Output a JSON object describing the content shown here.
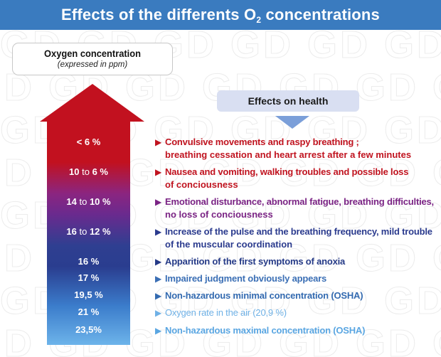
{
  "title": {
    "prefix": "Effects of the differents O",
    "subscript": "2",
    "suffix": " concentrations"
  },
  "colors": {
    "title_bar": "#3a7bbf",
    "arrow_top": "#c2111f",
    "arrow_mid": "#7a2a8e",
    "arrow_bottom_dark": "#2a3d8f",
    "arrow_bottom_light": "#6db4ea",
    "effects_box": "#d9dff2",
    "effects_pointer": "#7b9fd9"
  },
  "oxygen_box": {
    "title": "Oxygen concentration",
    "subtitle": "(expressed in ppm)"
  },
  "effects_box": {
    "label": "Effects on health"
  },
  "bullet": "▶",
  "levels": [
    {
      "a": "< 6 %",
      "to": "",
      "b": ""
    },
    {
      "a": "10",
      "to": " to ",
      "b": "6 %"
    },
    {
      "a": "14",
      "to": " to ",
      "b": "10 %"
    },
    {
      "a": "16",
      "to": " to ",
      "b": "12 %"
    },
    {
      "a": "16 %",
      "to": "",
      "b": ""
    },
    {
      "a": "17 %",
      "to": "",
      "b": ""
    },
    {
      "a": "19,5 %",
      "to": "",
      "b": ""
    },
    {
      "a": "21 %",
      "to": "",
      "b": ""
    },
    {
      "a": "23,5%",
      "to": "",
      "b": ""
    }
  ],
  "effects": [
    {
      "line1": "Convulsive movements and raspy breathing ;",
      "line2": "breathing cessation and heart arrest after a few minutes",
      "color": "#c0131f"
    },
    {
      "line1": "Nausea and vomiting, walking troubles and possible loss",
      "line2": " of conciousness",
      "color": "#c0131f"
    },
    {
      "line1": "Emotional disturbance, abnormal fatigue, breathing difficulties,",
      "line2": "no loss of conciousness",
      "color": "#7a2384"
    },
    {
      "line1": "Increase of the pulse and the breathing frequency, mild trouble",
      "line2": "of the muscular coordination",
      "color": "#2b3b8e"
    },
    {
      "line1": "Apparition of the first symptoms of anoxia",
      "line2": "",
      "color": "#253a87"
    },
    {
      "line1": "Impaired judgment obviously appears",
      "line2": "",
      "color": "#3b6fb5"
    },
    {
      "line1": "Non-hazardous minimal concentration (OSHA)",
      "line2": "",
      "color": "#336ab0"
    },
    {
      "line1": "Oxygen rate in the air (20,9 %)",
      "line2": "",
      "color": "#6fb1e6"
    },
    {
      "line1": "Non-hazardous maximal concentration (OSHA)",
      "line2": "",
      "color": "#5aa6e2"
    }
  ],
  "watermark": "GD"
}
